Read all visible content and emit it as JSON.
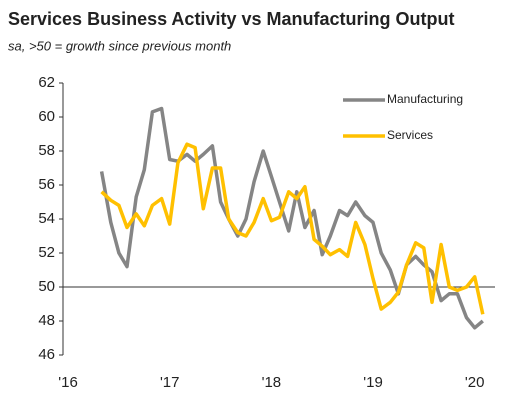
{
  "chart_data": {
    "type": "line",
    "title": "Services Business Activity vs Manufacturing Output",
    "subtitle": "sa, >50 = growth since previous month",
    "x": [
      2016.33,
      2016.42,
      2016.5,
      2016.58,
      2016.67,
      2016.75,
      2016.83,
      2016.92,
      2017,
      2017.08,
      2017.17,
      2017.25,
      2017.33,
      2017.42,
      2017.5,
      2017.58,
      2017.67,
      2017.75,
      2017.83,
      2017.92,
      2018,
      2018.08,
      2018.17,
      2018.25,
      2018.33,
      2018.42,
      2018.5,
      2018.58,
      2018.67,
      2018.75,
      2018.83,
      2018.92,
      2019,
      2019.08,
      2019.17,
      2019.25,
      2019.33,
      2019.42,
      2019.5,
      2019.58,
      2019.67,
      2019.75,
      2019.83,
      2019.92,
      2020,
      2020.08
    ],
    "series": [
      {
        "name": "Manufacturing",
        "color": "#858585",
        "values": [
          56.8,
          53.8,
          52.0,
          51.2,
          55.3,
          56.9,
          60.3,
          60.5,
          57.5,
          57.4,
          57.8,
          57.4,
          57.8,
          58.3,
          55.0,
          54.0,
          53.0,
          54.0,
          56.2,
          58.0,
          56.5,
          55.0,
          53.3,
          55.6,
          53.5,
          54.5,
          51.9,
          53.0,
          54.5,
          54.2,
          55.0,
          54.2,
          53.8,
          52.0,
          51.0,
          49.6,
          51.3,
          51.8,
          51.3,
          50.9,
          49.2,
          49.6,
          49.6,
          48.2,
          47.6,
          48.0
        ]
      },
      {
        "name": "Services",
        "color": "#ffc000",
        "values": [
          55.6,
          55.1,
          54.8,
          53.5,
          54.3,
          53.6,
          54.8,
          55.2,
          53.7,
          57.3,
          58.4,
          58.2,
          54.6,
          57.0,
          57.0,
          54.0,
          53.2,
          53.0,
          53.8,
          55.2,
          53.9,
          54.1,
          55.6,
          55.2,
          55.9,
          52.8,
          52.4,
          51.9,
          52.2,
          51.8,
          53.8,
          52.5,
          50.5,
          48.7,
          49.1,
          49.7,
          51.3,
          52.6,
          52.3,
          49.1,
          52.5,
          50.0,
          49.8,
          50.0,
          50.6,
          48.4
        ]
      }
    ],
    "xlim": [
      2015.95,
      2020.2
    ],
    "xticks": [
      {
        "value": 2016,
        "label": "'16"
      },
      {
        "value": 2017,
        "label": "'17"
      },
      {
        "value": 2018,
        "label": "'18"
      },
      {
        "value": 2019,
        "label": "'19"
      },
      {
        "value": 2020,
        "label": "'20"
      }
    ],
    "ylim": [
      46,
      62
    ],
    "yticks": [
      46,
      48,
      50,
      52,
      54,
      56,
      58,
      60,
      62
    ],
    "baseline": 50,
    "legend": "top-right"
  }
}
